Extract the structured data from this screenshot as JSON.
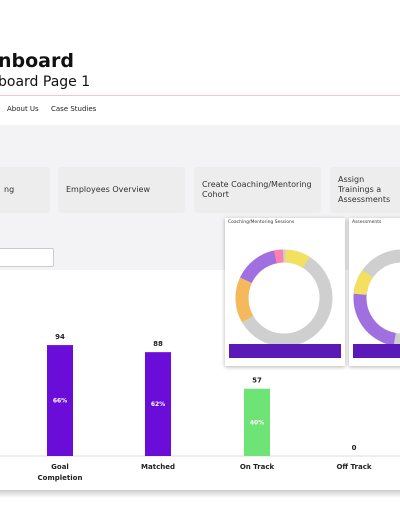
{
  "header": {
    "title": "nboard",
    "subtitle": "board Page 1"
  },
  "nav": [
    "About Us",
    "Case Studies"
  ],
  "cards": [
    "ng",
    "Employees Overview",
    "Create Coaching/Mentoring Cohort",
    "Assign Trainings a Assessments"
  ],
  "panels": [
    "Coaching/Mentoring Sessions",
    "Assessments"
  ],
  "chart_data": {
    "type": "bar",
    "categories": [
      "Goal Completion",
      "Matched",
      "On Track",
      "Off Track"
    ],
    "values": [
      94,
      88,
      57,
      0
    ],
    "percent_labels": [
      "66%",
      "62%",
      "40%",
      null
    ],
    "colors": [
      "#6a0dd8",
      "#6a0dd8",
      "#6ee477",
      "#6a0dd8"
    ]
  }
}
